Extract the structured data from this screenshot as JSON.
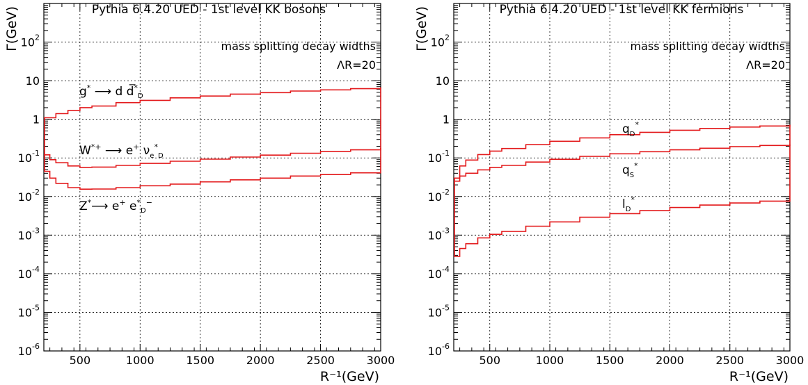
{
  "chart_data": [
    {
      "type": "line",
      "title": "Pythia 6.4.20 UED - 1st level KK bosons",
      "xlabel": "R⁻¹(GeV)",
      "ylabel": "Γ(GeV)",
      "xlim": [
        200,
        3000
      ],
      "ylim": [
        1e-06,
        1000
      ],
      "y_scale": "log",
      "grid": true,
      "x_ticks": [
        "500",
        "1000",
        "1500",
        "2000",
        "2500",
        "3000"
      ],
      "y_ticks": [
        {
          "base": "10",
          "exp": "-6"
        },
        {
          "base": "10",
          "exp": "-5"
        },
        {
          "base": "10",
          "exp": "-4"
        },
        {
          "base": "10",
          "exp": "-3"
        },
        {
          "base": "10",
          "exp": "-2"
        },
        {
          "base": "10",
          "exp": "-1"
        },
        {
          "base": "1",
          "exp": ""
        },
        {
          "base": "10",
          "exp": ""
        },
        {
          "base": "10",
          "exp": "2"
        }
      ],
      "annotations": [
        "mass splitting decay widths",
        "ΛR=20"
      ],
      "colors": {
        "curve": "#e31a1c"
      },
      "series": [
        {
          "label": "g* → d d̅*D",
          "x": [
            200,
            300,
            400,
            500,
            600,
            800,
            1000,
            1250,
            1500,
            1750,
            2000,
            2250,
            2500,
            2750,
            3000
          ],
          "y": [
            1.1,
            1.4,
            1.7,
            2.0,
            2.2,
            2.7,
            3.1,
            3.6,
            4.0,
            4.5,
            4.9,
            5.4,
            5.8,
            6.2,
            6.7
          ]
        },
        {
          "label": "W*+ → e+ νe*D",
          "x": [
            200,
            250,
            300,
            400,
            500,
            600,
            800,
            1000,
            1250,
            1500,
            1750,
            2000,
            2250,
            2500,
            2750,
            3000
          ],
          "y": [
            0.12,
            0.09,
            0.075,
            0.062,
            0.057,
            0.058,
            0.064,
            0.072,
            0.082,
            0.093,
            0.105,
            0.118,
            0.132,
            0.148,
            0.162,
            0.18
          ]
        },
        {
          "label": "Z* → e+ e*D−",
          "x": [
            200,
            250,
            300,
            400,
            500,
            600,
            800,
            1000,
            1250,
            1500,
            1750,
            2000,
            2250,
            2500,
            2750,
            3000
          ],
          "y": [
            0.045,
            0.03,
            0.022,
            0.017,
            0.0155,
            0.0156,
            0.017,
            0.019,
            0.021,
            0.024,
            0.027,
            0.03,
            0.034,
            0.037,
            0.041,
            0.045
          ]
        }
      ]
    },
    {
      "type": "line",
      "title": "Pythia 6.4.20 UED - 1st level KK fermions",
      "xlabel": "R⁻¹(GeV)",
      "ylabel": "Γ(GeV)",
      "xlim": [
        200,
        3000
      ],
      "ylim": [
        1e-06,
        1000
      ],
      "y_scale": "log",
      "grid": true,
      "x_ticks": [
        "500",
        "1000",
        "1500",
        "2000",
        "2500",
        "3000"
      ],
      "y_ticks": [
        {
          "base": "10",
          "exp": "-6"
        },
        {
          "base": "10",
          "exp": "-5"
        },
        {
          "base": "10",
          "exp": "-4"
        },
        {
          "base": "10",
          "exp": "-3"
        },
        {
          "base": "10",
          "exp": "-2"
        },
        {
          "base": "10",
          "exp": "-1"
        },
        {
          "base": "1",
          "exp": ""
        },
        {
          "base": "10",
          "exp": ""
        },
        {
          "base": "10",
          "exp": "2"
        }
      ],
      "annotations": [
        "mass splitting decay widths",
        "ΛR=20"
      ],
      "colors": {
        "curve": "#e31a1c"
      },
      "series": [
        {
          "label": "qD*",
          "x": [
            200,
            250,
            300,
            400,
            500,
            600,
            800,
            1000,
            1250,
            1500,
            1750,
            2000,
            2250,
            2500,
            2750,
            3000
          ],
          "y": [
            0.03,
            0.062,
            0.088,
            0.122,
            0.15,
            0.175,
            0.22,
            0.27,
            0.33,
            0.4,
            0.46,
            0.52,
            0.58,
            0.63,
            0.67,
            0.72
          ]
        },
        {
          "label": "qS*",
          "x": [
            200,
            250,
            300,
            400,
            500,
            600,
            800,
            1000,
            1250,
            1500,
            1750,
            2000,
            2250,
            2500,
            2750,
            3000
          ],
          "y": [
            0.025,
            0.034,
            0.04,
            0.049,
            0.057,
            0.064,
            0.078,
            0.092,
            0.11,
            0.128,
            0.145,
            0.162,
            0.178,
            0.195,
            0.21,
            0.225
          ]
        },
        {
          "label": "lD*",
          "x": [
            200,
            250,
            300,
            400,
            500,
            600,
            800,
            1000,
            1250,
            1500,
            1750,
            2000,
            2250,
            2500,
            2750,
            3000
          ],
          "y": [
            0.00028,
            0.00045,
            0.0006,
            0.00085,
            0.00105,
            0.00125,
            0.0017,
            0.0022,
            0.0029,
            0.0036,
            0.0043,
            0.0052,
            0.006,
            0.0068,
            0.0076,
            0.0085
          ]
        }
      ]
    }
  ]
}
